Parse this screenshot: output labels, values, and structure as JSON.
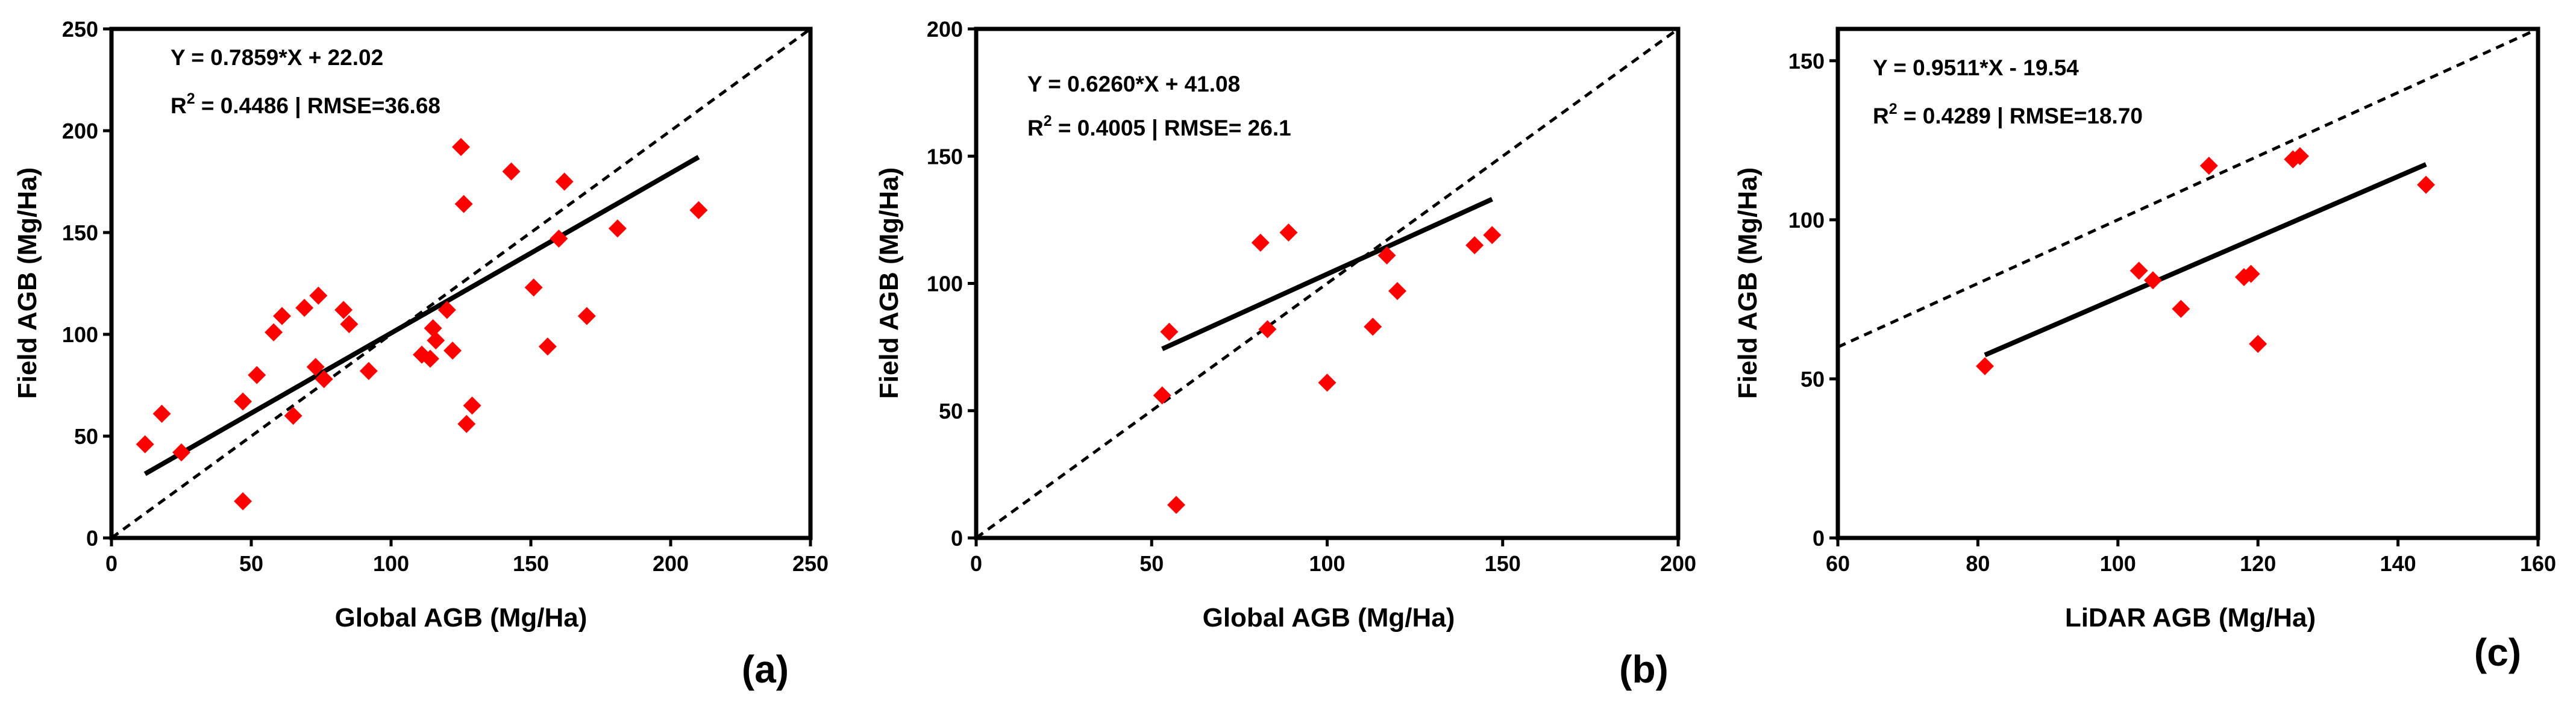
{
  "chart_data": [
    {
      "type": "scatter",
      "panel_label": "(a)",
      "xlabel": "Global AGB (Mg/Ha)",
      "ylabel": "Field  AGB (Mg/Ha)",
      "xlim": [
        0,
        250
      ],
      "ylim": [
        0,
        250
      ],
      "xticks": [
        0,
        50,
        100,
        150,
        200,
        250
      ],
      "yticks": [
        0,
        50,
        100,
        150,
        200,
        250
      ],
      "equation": "Y = 0.7859*X + 22.02",
      "r2_label": "R",
      "r2_sup": "2",
      "stats_text": " = 0.4486 | RMSE=36.68",
      "fit": {
        "slope": 0.7859,
        "intercept": 22.02,
        "x_range": [
          12,
          210
        ]
      },
      "identity_line": true,
      "marker_color": "#ff0000",
      "points": [
        [
          12,
          46
        ],
        [
          18,
          61
        ],
        [
          25,
          42
        ],
        [
          47,
          67
        ],
        [
          47,
          18
        ],
        [
          52,
          80
        ],
        [
          58,
          101
        ],
        [
          61,
          109
        ],
        [
          65,
          60
        ],
        [
          69,
          113
        ],
        [
          73,
          84
        ],
        [
          74,
          119
        ],
        [
          76,
          78
        ],
        [
          83,
          112
        ],
        [
          85,
          105
        ],
        [
          92,
          82
        ],
        [
          111,
          90
        ],
        [
          114,
          88
        ],
        [
          115,
          103
        ],
        [
          116,
          97
        ],
        [
          120,
          112
        ],
        [
          122,
          92
        ],
        [
          125,
          192
        ],
        [
          126,
          164
        ],
        [
          127,
          56
        ],
        [
          129,
          65
        ],
        [
          143,
          180
        ],
        [
          151,
          123
        ],
        [
          156,
          94
        ],
        [
          160,
          147
        ],
        [
          162,
          175
        ],
        [
          170,
          109
        ],
        [
          181,
          152
        ],
        [
          210,
          161
        ]
      ]
    },
    {
      "type": "scatter",
      "panel_label": "(b)",
      "xlabel": "Global AGB (Mg/Ha)",
      "ylabel": "Field AGB (Mg/Ha)",
      "xlim": [
        0,
        200
      ],
      "ylim": [
        0,
        200
      ],
      "xticks": [
        0,
        50,
        100,
        150,
        200
      ],
      "yticks": [
        0,
        50,
        100,
        150,
        200
      ],
      "equation": "Y = 0.6260*X + 41.08",
      "r2_label": "R",
      "r2_sup": "2",
      "stats_text": " = 0.4005 | RMSE= 26.1",
      "fit": {
        "slope": 0.626,
        "intercept": 41.08,
        "x_range": [
          53,
          147
        ]
      },
      "identity_line": true,
      "marker_color": "#ff0000",
      "points": [
        [
          53,
          56
        ],
        [
          55,
          81
        ],
        [
          57,
          13
        ],
        [
          81,
          116
        ],
        [
          83,
          82
        ],
        [
          89,
          120
        ],
        [
          100,
          61
        ],
        [
          113,
          83
        ],
        [
          117,
          111
        ],
        [
          120,
          97
        ],
        [
          142,
          115
        ],
        [
          147,
          119
        ]
      ]
    },
    {
      "type": "scatter",
      "panel_label": "(c)",
      "xlabel": "LiDAR AGB (Mg/Ha)",
      "ylabel": "Field AGB (Mg/Ha)",
      "xlim": [
        60,
        160
      ],
      "ylim": [
        0,
        160
      ],
      "xticks": [
        60,
        80,
        100,
        120,
        140,
        160
      ],
      "yticks": [
        0,
        50,
        100,
        150
      ],
      "equation": "Y = 0.9511*X - 19.54",
      "r2_label": "R",
      "r2_sup": "2",
      "stats_text": " = 0.4289 | RMSE=18.70",
      "fit": {
        "slope": 0.9511,
        "intercept": -19.54,
        "x_range": [
          81,
          144
        ]
      },
      "identity_line": true,
      "marker_color": "#ff0000",
      "points": [
        [
          81,
          54
        ],
        [
          103,
          84
        ],
        [
          105,
          81
        ],
        [
          109,
          72
        ],
        [
          113,
          117
        ],
        [
          118,
          82
        ],
        [
          119,
          83
        ],
        [
          120,
          61
        ],
        [
          125,
          119
        ],
        [
          126,
          120
        ],
        [
          144,
          111
        ]
      ]
    }
  ]
}
